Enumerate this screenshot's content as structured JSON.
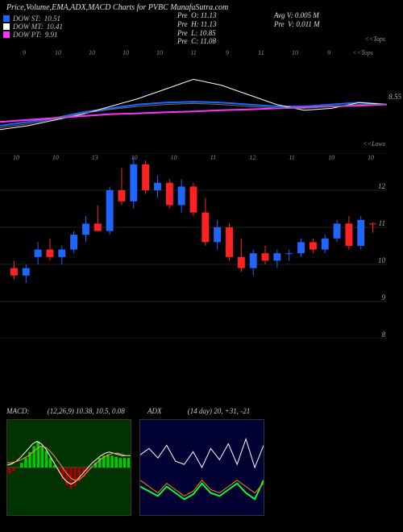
{
  "title": "Price,Volume,EMA,ADX,MACD Charts for PVBC MunafaSutra.com",
  "legend": [
    {
      "color": "#1e66ff",
      "label": "DOW ST:",
      "value": "10.51"
    },
    {
      "color": "#ffffff",
      "label": "DOW MT:",
      "value": "10.41"
    },
    {
      "color": "#ff33ff",
      "label": "DOW PT:",
      "value": "9.91"
    }
  ],
  "pre": {
    "O": "11.13",
    "H": "11.13",
    "L": "10.85",
    "C": "11.08"
  },
  "avg": {
    "AvgV": "0.005 M",
    "PreV": "0.011 M"
  },
  "panel1": {
    "right_label": "<<Tops",
    "value_tag": "8.55",
    "ylim": [
      7.5,
      10
    ],
    "x_ticks": [
      "9",
      "10",
      "10",
      "10",
      "10",
      "11",
      "9",
      "11",
      "10",
      "9",
      "<<Tops"
    ],
    "lines": {
      "blue": {
        "color": "#1e66ff",
        "width": 2,
        "pts": [
          8.0,
          8.1,
          8.2,
          8.35,
          8.45,
          8.55,
          8.6,
          8.62,
          8.6,
          8.55,
          8.5,
          8.5,
          8.55,
          8.6,
          8.55
        ]
      },
      "white": {
        "color": "#ffffff",
        "width": 1,
        "pts": [
          7.9,
          8.0,
          8.15,
          8.3,
          8.5,
          8.7,
          8.95,
          9.2,
          9.05,
          8.8,
          8.55,
          8.4,
          8.45,
          8.6,
          8.55
        ]
      },
      "mag": {
        "color": "#ff33ff",
        "width": 2,
        "pts": [
          8.1,
          8.15,
          8.2,
          8.25,
          8.3,
          8.32,
          8.35,
          8.37,
          8.4,
          8.42,
          8.45,
          8.47,
          8.5,
          8.52,
          8.55
        ]
      },
      "gray": {
        "color": "#707070",
        "width": 1,
        "pts": [
          7.95,
          8.05,
          8.18,
          8.32,
          8.42,
          8.5,
          8.55,
          8.58,
          8.55,
          8.5,
          8.46,
          8.45,
          8.5,
          8.55,
          8.55
        ]
      }
    }
  },
  "panel2": {
    "right_label": "<<Lows",
    "ylim": [
      8,
      13
    ],
    "grid": [
      8,
      9,
      10,
      11,
      12,
      13
    ],
    "x_ticks": [
      "10",
      "10",
      "13",
      "10",
      "10",
      "11",
      "12",
      "11",
      "10",
      "10"
    ],
    "candles": [
      {
        "o": 9.9,
        "h": 10.1,
        "l": 9.6,
        "c": 9.7,
        "col": "#ff2222"
      },
      {
        "o": 9.7,
        "h": 10.0,
        "l": 9.5,
        "c": 9.9,
        "col": "#1e66ff"
      },
      {
        "o": 10.2,
        "h": 10.6,
        "l": 10.0,
        "c": 10.4,
        "col": "#1e66ff"
      },
      {
        "o": 10.4,
        "h": 10.7,
        "l": 10.1,
        "c": 10.2,
        "col": "#ff2222"
      },
      {
        "o": 10.2,
        "h": 10.5,
        "l": 10.0,
        "c": 10.4,
        "col": "#1e66ff"
      },
      {
        "o": 10.4,
        "h": 10.9,
        "l": 10.3,
        "c": 10.8,
        "col": "#1e66ff"
      },
      {
        "o": 10.8,
        "h": 11.3,
        "l": 10.6,
        "c": 11.1,
        "col": "#1e66ff"
      },
      {
        "o": 11.1,
        "h": 11.6,
        "l": 10.9,
        "c": 10.9,
        "col": "#ff2222"
      },
      {
        "o": 10.9,
        "h": 12.1,
        "l": 10.8,
        "c": 12.0,
        "col": "#1e66ff"
      },
      {
        "o": 12.0,
        "h": 12.6,
        "l": 11.6,
        "c": 11.7,
        "col": "#ff2222"
      },
      {
        "o": 11.7,
        "h": 12.9,
        "l": 11.5,
        "c": 12.7,
        "col": "#1e66ff"
      },
      {
        "o": 12.7,
        "h": 12.8,
        "l": 11.9,
        "c": 12.0,
        "col": "#ff2222"
      },
      {
        "o": 12.0,
        "h": 12.4,
        "l": 11.8,
        "c": 12.2,
        "col": "#1e66ff"
      },
      {
        "o": 12.2,
        "h": 12.3,
        "l": 11.5,
        "c": 11.6,
        "col": "#ff2222"
      },
      {
        "o": 11.6,
        "h": 12.3,
        "l": 11.4,
        "c": 12.1,
        "col": "#1e66ff"
      },
      {
        "o": 12.1,
        "h": 12.2,
        "l": 11.3,
        "c": 11.4,
        "col": "#ff2222"
      },
      {
        "o": 11.4,
        "h": 11.8,
        "l": 10.5,
        "c": 10.6,
        "col": "#ff2222"
      },
      {
        "o": 10.6,
        "h": 11.2,
        "l": 10.4,
        "c": 11.0,
        "col": "#1e66ff"
      },
      {
        "o": 11.0,
        "h": 11.1,
        "l": 10.1,
        "c": 10.2,
        "col": "#ff2222"
      },
      {
        "o": 10.2,
        "h": 10.7,
        "l": 9.8,
        "c": 9.9,
        "col": "#ff2222"
      },
      {
        "o": 9.9,
        "h": 10.4,
        "l": 9.7,
        "c": 10.3,
        "col": "#1e66ff"
      },
      {
        "o": 10.3,
        "h": 10.5,
        "l": 10.0,
        "c": 10.1,
        "col": "#ff2222"
      },
      {
        "o": 10.1,
        "h": 10.4,
        "l": 9.9,
        "c": 10.3,
        "col": "#1e66ff"
      },
      {
        "o": 10.3,
        "h": 10.4,
        "l": 10.1,
        "c": 10.3,
        "col": "#1e66ff"
      },
      {
        "o": 10.3,
        "h": 10.7,
        "l": 10.2,
        "c": 10.6,
        "col": "#1e66ff"
      },
      {
        "o": 10.6,
        "h": 10.7,
        "l": 10.3,
        "c": 10.4,
        "col": "#ff2222"
      },
      {
        "o": 10.4,
        "h": 10.8,
        "l": 10.3,
        "c": 10.7,
        "col": "#1e66ff"
      },
      {
        "o": 10.7,
        "h": 11.2,
        "l": 10.6,
        "c": 11.1,
        "col": "#1e66ff"
      },
      {
        "o": 11.1,
        "h": 11.3,
        "l": 10.4,
        "c": 10.5,
        "col": "#ff2222"
      },
      {
        "o": 10.5,
        "h": 11.3,
        "l": 10.4,
        "c": 11.2,
        "col": "#1e66ff"
      },
      {
        "o": 11.1,
        "h": 11.13,
        "l": 10.85,
        "c": 11.08,
        "col": "#ff2222"
      }
    ]
  },
  "macd": {
    "label": "MACD:",
    "params": "(12,26,9) 10.38, 10.5, 0.08",
    "bg": "#003300",
    "bar_color": "#00cc00",
    "neg_color": "#aa0000",
    "line1_color": "#ffffff",
    "line2_color": "#ff9933",
    "ylim": [
      -0.4,
      0.4
    ],
    "bars": [
      -0.05,
      -0.03,
      0.0,
      0.04,
      0.08,
      0.13,
      0.18,
      0.22,
      0.18,
      0.14,
      0.08,
      0.02,
      -0.04,
      -0.1,
      -0.15,
      -0.18,
      -0.16,
      -0.12,
      -0.08,
      -0.04,
      0.0,
      0.04,
      0.08,
      0.1,
      0.11,
      0.1,
      0.09,
      0.08,
      0.08,
      0.08
    ],
    "line1": [
      0.02,
      0.03,
      0.05,
      0.08,
      0.12,
      0.16,
      0.2,
      0.22,
      0.2,
      0.16,
      0.1,
      0.04,
      -0.02,
      -0.08,
      -0.12,
      -0.14,
      -0.12,
      -0.08,
      -0.04,
      0.0,
      0.04,
      0.07,
      0.1,
      0.12,
      0.13,
      0.12,
      0.11,
      0.1,
      0.1,
      0.1
    ],
    "line2": [
      0.04,
      0.04,
      0.05,
      0.06,
      0.08,
      0.1,
      0.13,
      0.16,
      0.18,
      0.17,
      0.14,
      0.1,
      0.05,
      0.0,
      -0.05,
      -0.09,
      -0.11,
      -0.1,
      -0.07,
      -0.03,
      0.01,
      0.04,
      0.07,
      0.09,
      0.11,
      0.12,
      0.12,
      0.11,
      0.1,
      0.1
    ]
  },
  "adx": {
    "label": "ADX",
    "params": "(14 day) 20, +31, -21",
    "bg": "#000033",
    "ylim": [
      0,
      60
    ],
    "white": {
      "color": "#ffffff",
      "pts": [
        38,
        42,
        36,
        44,
        34,
        32,
        40,
        30,
        42,
        35,
        45,
        32,
        48,
        30,
        44
      ]
    },
    "green": {
      "color": "#00ff33",
      "pts": [
        18,
        15,
        12,
        18,
        14,
        10,
        13,
        20,
        14,
        12,
        16,
        20,
        14,
        10,
        22
      ]
    },
    "orange": {
      "color": "#ff8800",
      "pts": [
        22,
        18,
        14,
        20,
        16,
        12,
        15,
        22,
        16,
        14,
        18,
        22,
        18,
        14,
        20
      ]
    }
  }
}
